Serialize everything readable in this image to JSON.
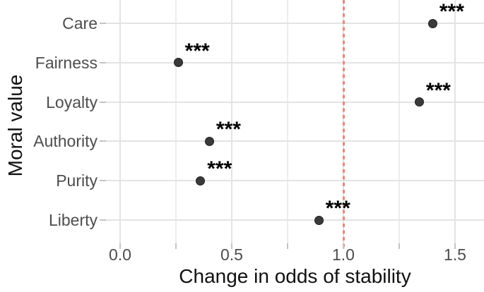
{
  "chart_data": {
    "type": "scatter",
    "variant": "horizontal-dot-plot",
    "title": "",
    "xlabel": "Change in odds of stability",
    "ylabel": "Moral value",
    "categories": [
      "Care",
      "Fairness",
      "Loyalty",
      "Authority",
      "Purity",
      "Liberty"
    ],
    "values": [
      1.4,
      0.26,
      1.34,
      0.4,
      0.36,
      0.89
    ],
    "point_labels": [
      "***",
      "***",
      "***",
      "***",
      "***",
      "***"
    ],
    "x_axis": {
      "tick_labels": [
        "0.0",
        "0.5",
        "1.0",
        "1.5"
      ],
      "tick_values": [
        0,
        0.5,
        1,
        1.5
      ],
      "minor_tick_values": [
        0.25,
        0.75,
        1.25
      ],
      "range": [
        -0.06,
        1.63
      ]
    },
    "reference_line": {
      "x": 1.0,
      "style": "dashed",
      "color": "#F4837B"
    },
    "grid": true,
    "legend": null,
    "colors": {
      "background": "#FFFFFF",
      "point_fill": "#3A3A3A",
      "point_edge": "#1F1F1F",
      "grid_major": "#E3E3E3",
      "grid_minor": "#EDEDED",
      "axis_tick": "#C4C4C4",
      "tick_label": "#4D4D4D",
      "axis_title": "#111111",
      "significance_color": "#000000"
    }
  }
}
